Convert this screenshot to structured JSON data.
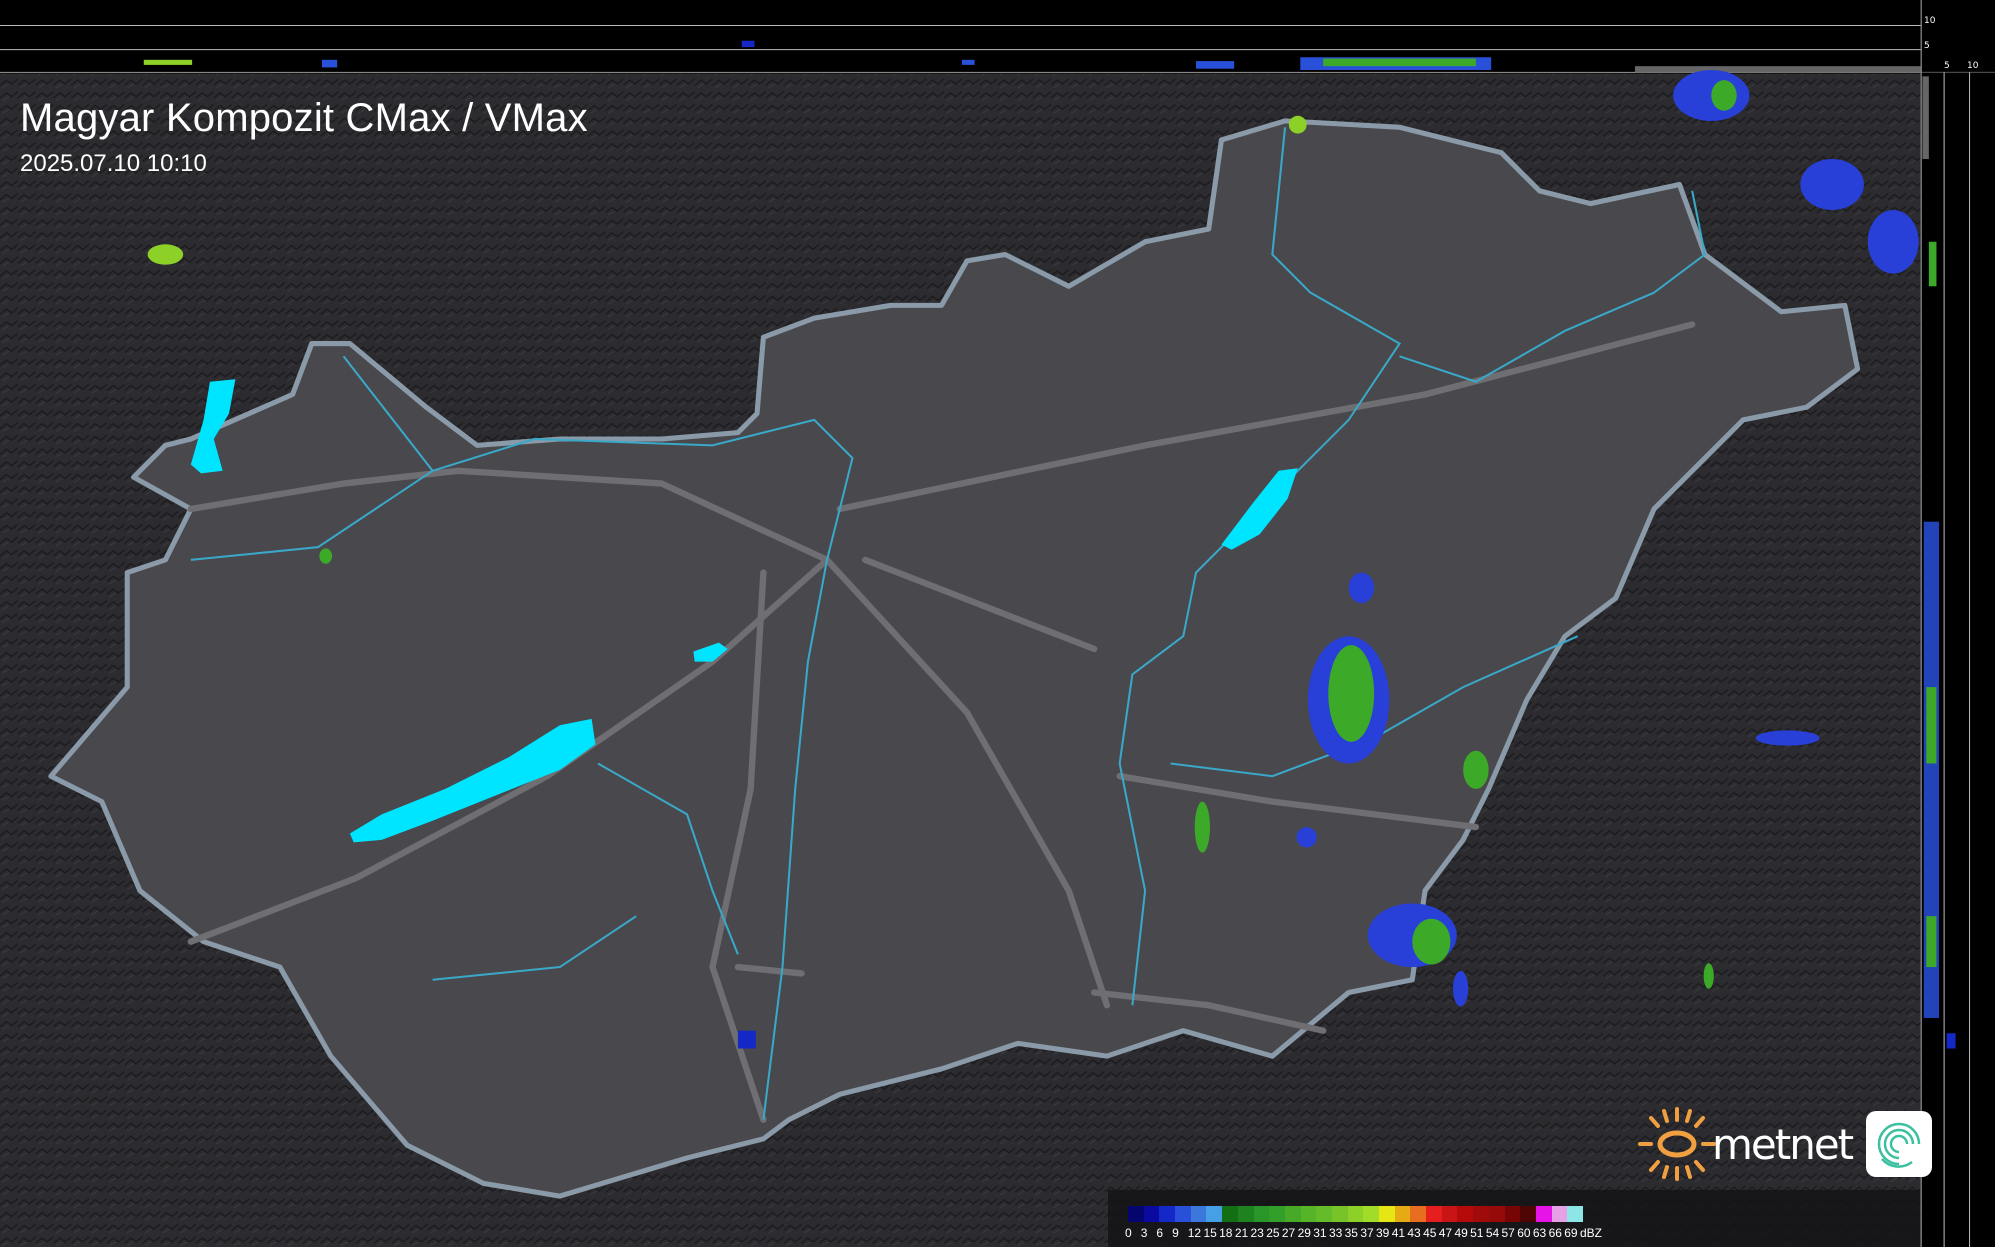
{
  "header": {
    "title": "Magyar Kompozit CMax / VMax",
    "timestamp": "2025.07.10 10:10"
  },
  "side_profile_axes": {
    "top_ticks": [
      "10",
      "5"
    ],
    "right_ticks": [
      "5",
      "10"
    ]
  },
  "legend": {
    "unit": "dBZ",
    "labels": [
      "0",
      "3",
      "6",
      "9",
      "12",
      "15",
      "18",
      "21",
      "23",
      "25",
      "27",
      "29",
      "31",
      "33",
      "35",
      "37",
      "39",
      "41",
      "43",
      "45",
      "47",
      "49",
      "51",
      "54",
      "57",
      "60",
      "63",
      "66",
      "69"
    ],
    "colors": [
      "#05056e",
      "#0a0aa0",
      "#1428c8",
      "#2850d8",
      "#3c78dc",
      "#46a0e6",
      "#146e14",
      "#1e821e",
      "#289628",
      "#32a028",
      "#46aa28",
      "#55b428",
      "#64bc28",
      "#78c428",
      "#8cd028",
      "#a0dc28",
      "#e6e614",
      "#e6aa14",
      "#e66e1e",
      "#e61e1e",
      "#c81414",
      "#b40a0a",
      "#a00a0a",
      "#960a0a",
      "#780505",
      "#500505",
      "#e614e6",
      "#e6a0e6",
      "#8ce6e6"
    ]
  },
  "colors": {
    "background": "#3a3a3e",
    "country": "#55555a",
    "border": "#8a9aa8",
    "rivers": "#3aa8c8",
    "lakes": "#00e5ff",
    "radar_green": "#3caa28",
    "radar_blue": "#2840d8"
  },
  "logo": {
    "brand": "metnet",
    "sun_color": "#f0a040",
    "badge_color": "#3cc0a0"
  }
}
